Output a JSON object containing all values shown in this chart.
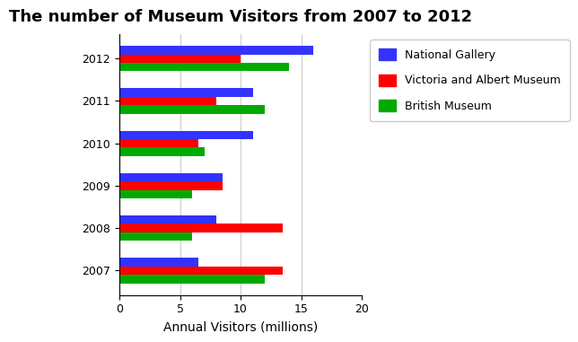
{
  "title": "The number of Museum Visitors from 2007 to 2012",
  "xlabel": "Annual Visitors (millions)",
  "years": [
    "2007",
    "2008",
    "2009",
    "2010",
    "2011",
    "2012"
  ],
  "national_gallery": [
    6.5,
    8.0,
    8.5,
    11.0,
    11.0,
    16.0
  ],
  "victoria_albert": [
    13.5,
    13.5,
    8.5,
    6.5,
    8.0,
    10.0
  ],
  "british_museum": [
    12.0,
    6.0,
    6.0,
    7.0,
    12.0,
    14.0
  ],
  "colors": {
    "national_gallery": "#3333FF",
    "victoria_albert": "#FF0000",
    "british_museum": "#00AA00"
  },
  "legend_labels": [
    "National Gallery",
    "Victoria and Albert Museum",
    "British Museum"
  ],
  "xlim": [
    0,
    20
  ],
  "xticks": [
    0,
    5,
    10,
    15,
    20
  ],
  "bar_height": 0.2,
  "background_color": "#ffffff",
  "title_fontsize": 13,
  "label_fontsize": 10,
  "tick_fontsize": 9
}
